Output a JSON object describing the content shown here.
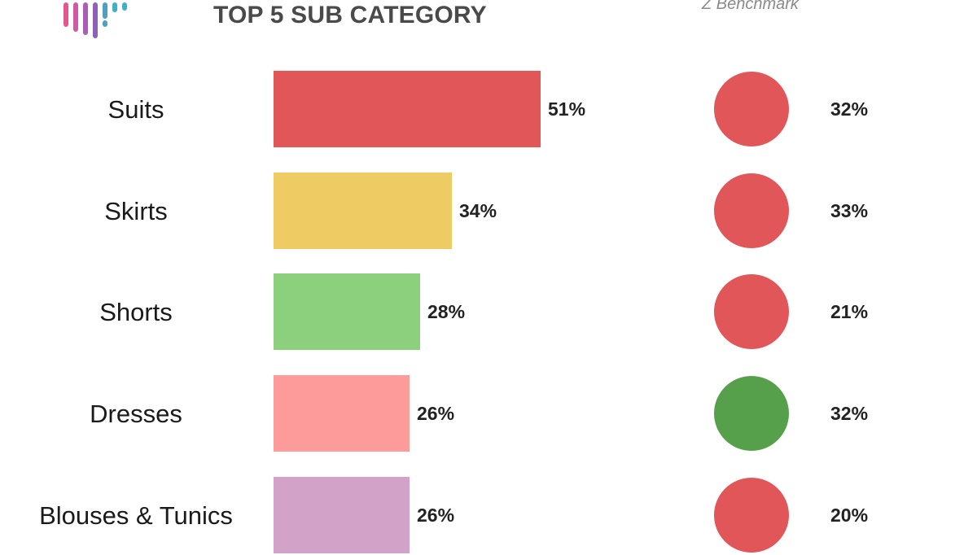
{
  "header": {
    "title": "TOP 5 SUB CATEGORY",
    "benchmark_label": "Z Benchmark"
  },
  "chart_data": {
    "type": "bar",
    "orientation": "horizontal",
    "title": "TOP 5 SUB CATEGORY",
    "categories": [
      "Suits",
      "Skirts",
      "Shorts",
      "Dresses",
      "Blouses & Tunics"
    ],
    "values": [
      51,
      34,
      28,
      26,
      26
    ],
    "value_labels": [
      "51%",
      "34%",
      "28%",
      "26%",
      "26%"
    ],
    "bar_colors": [
      "#e05659",
      "#eecb63",
      "#8ccf7d",
      "#fd9b9b",
      "#d3a2c9"
    ],
    "xlim": [
      0,
      51
    ],
    "benchmark": {
      "name": "Z Benchmark",
      "values": [
        32,
        33,
        21,
        32,
        20
      ],
      "value_labels": [
        "32%",
        "33%",
        "21%",
        "32%",
        "20%"
      ],
      "indicator_colors": [
        "#e05659",
        "#e05659",
        "#e05659",
        "#57a04b",
        "#e05659"
      ]
    }
  }
}
